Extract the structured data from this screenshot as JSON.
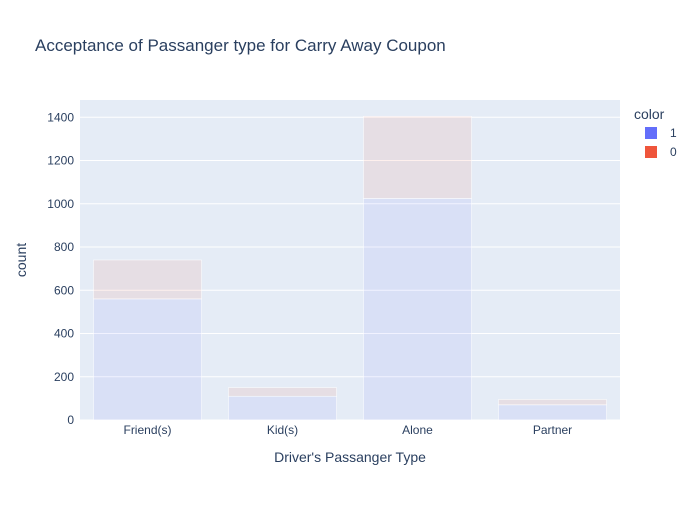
{
  "chart_data": {
    "type": "bar",
    "barmode": "stack",
    "title": "Acceptance of Passanger type for Carry Away Coupon",
    "xlabel": "Driver's Passanger Type",
    "ylabel": "count",
    "categories": [
      "Friend(s)",
      "Kid(s)",
      "Alone",
      "Partner"
    ],
    "ylim": [
      0,
      1480
    ],
    "yticks": [
      0,
      200,
      400,
      600,
      800,
      1000,
      1200,
      1400
    ],
    "grid": true,
    "legend": {
      "title": "color",
      "placement": "top-right"
    },
    "series": [
      {
        "name": "1",
        "values": [
          560,
          110,
          1025,
          70
        ],
        "color": "#636efa"
      },
      {
        "name": "0",
        "values": [
          180,
          40,
          380,
          25
        ],
        "color": "#ef553b"
      }
    ]
  }
}
